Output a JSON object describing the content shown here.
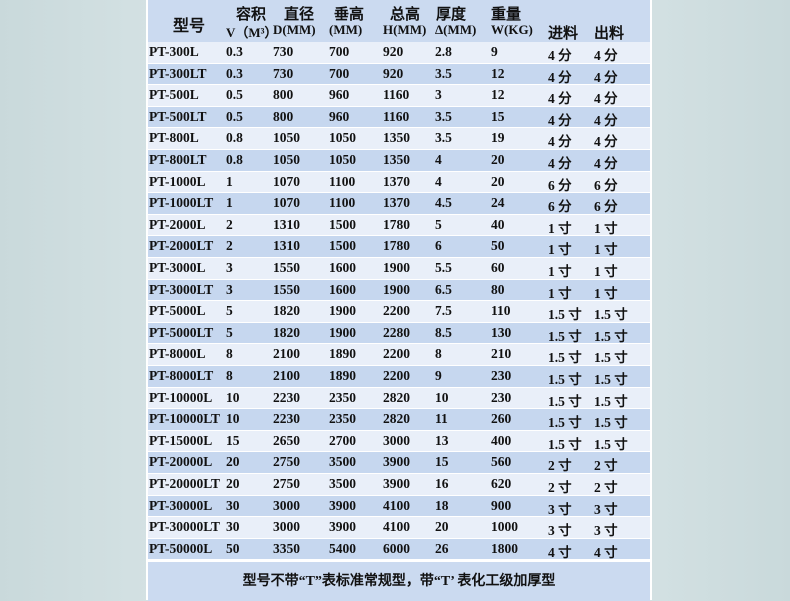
{
  "header": {
    "model": "型号",
    "columns": [
      {
        "top": "容积",
        "bottom": "V（M³）"
      },
      {
        "top": "直径",
        "bottom": "D(MM)"
      },
      {
        "top": "垂高",
        "bottom": "(MM)"
      },
      {
        "top": "总高",
        "bottom": "H(MM)"
      },
      {
        "top": "厚度",
        "bottom": "Δ(MM)"
      },
      {
        "top": "重量",
        "bottom": "W(KG)"
      },
      {
        "top": "",
        "bottom": "进料"
      },
      {
        "top": "",
        "bottom": "出料"
      }
    ]
  },
  "rows": [
    [
      "PT-300L",
      "0.3",
      "730",
      "700",
      "920",
      "2.8",
      "9",
      "4 分",
      "4 分"
    ],
    [
      "PT-300LT",
      "0.3",
      "730",
      "700",
      "920",
      "3.5",
      "12",
      "4 分",
      "4 分"
    ],
    [
      "PT-500L",
      "0.5",
      "800",
      "960",
      "1160",
      "3",
      "12",
      "4 分",
      "4 分"
    ],
    [
      "PT-500LT",
      "0.5",
      "800",
      "960",
      "1160",
      "3.5",
      "15",
      "4 分",
      "4 分"
    ],
    [
      "PT-800L",
      "0.8",
      "1050",
      "1050",
      "1350",
      "3.5",
      "19",
      "4 分",
      "4 分"
    ],
    [
      "PT-800LT",
      "0.8",
      "1050",
      "1050",
      "1350",
      "4",
      "20",
      "4 分",
      "4 分"
    ],
    [
      "PT-1000L",
      "1",
      "1070",
      "1100",
      "1370",
      "4",
      "20",
      "6 分",
      "6 分"
    ],
    [
      "PT-1000LT",
      "1",
      "1070",
      "1100",
      "1370",
      "4.5",
      "24",
      "6 分",
      "6 分"
    ],
    [
      "PT-2000L",
      "2",
      "1310",
      "1500",
      "1780",
      "5",
      "40",
      "1 寸",
      "1 寸"
    ],
    [
      "PT-2000LT",
      "2",
      "1310",
      "1500",
      "1780",
      "6",
      "50",
      "1 寸",
      "1 寸"
    ],
    [
      "PT-3000L",
      "3",
      "1550",
      "1600",
      "1900",
      "5.5",
      "60",
      "1 寸",
      "1 寸"
    ],
    [
      "PT-3000LT",
      "3",
      "1550",
      "1600",
      "1900",
      "6.5",
      "80",
      "1 寸",
      "1 寸"
    ],
    [
      "PT-5000L",
      "5",
      "1820",
      "1900",
      "2200",
      "7.5",
      "110",
      "1.5 寸",
      "1.5 寸"
    ],
    [
      "PT-5000LT",
      "5",
      "1820",
      "1900",
      "2280",
      "8.5",
      "130",
      "1.5 寸",
      "1.5 寸"
    ],
    [
      "PT-8000L",
      "8",
      "2100",
      "1890",
      "2200",
      "8",
      "210",
      "1.5 寸",
      "1.5 寸"
    ],
    [
      "PT-8000LT",
      "8",
      "2100",
      "1890",
      "2200",
      "9",
      "230",
      "1.5 寸",
      "1.5 寸"
    ],
    [
      "PT-10000L",
      "10",
      "2230",
      "2350",
      "2820",
      "10",
      "230",
      "1.5 寸",
      "1.5 寸"
    ],
    [
      "PT-10000LT",
      "10",
      "2230",
      "2350",
      "2820",
      "11",
      "260",
      "1.5 寸",
      "1.5 寸"
    ],
    [
      "PT-15000L",
      "15",
      "2650",
      "2700",
      "3000",
      "13",
      "400",
      "1.5 寸",
      "1.5 寸"
    ],
    [
      "PT-20000L",
      "20",
      "2750",
      "3500",
      "3900",
      "15",
      "560",
      "2 寸",
      "2 寸"
    ],
    [
      "PT-20000LT",
      "20",
      "2750",
      "3500",
      "3900",
      "16",
      "620",
      "2 寸",
      "2 寸"
    ],
    [
      "PT-30000L",
      "30",
      "3000",
      "3900",
      "4100",
      "18",
      "900",
      "3 寸",
      "3 寸"
    ],
    [
      "PT-30000LT",
      "30",
      "3000",
      "3900",
      "4100",
      "20",
      "1000",
      "3 寸",
      "3 寸"
    ],
    [
      "PT-50000L",
      "50",
      "3350",
      "5400",
      "6000",
      "26",
      "1800",
      "4 寸",
      "4 寸"
    ]
  ],
  "footer": "型号不带“T”表标准常规型，带“T’ 表化工级加厚型",
  "colors": {
    "row_light": "#e9eff9",
    "row_blue": "#c6d7ef",
    "header": "#cbdaf0"
  }
}
